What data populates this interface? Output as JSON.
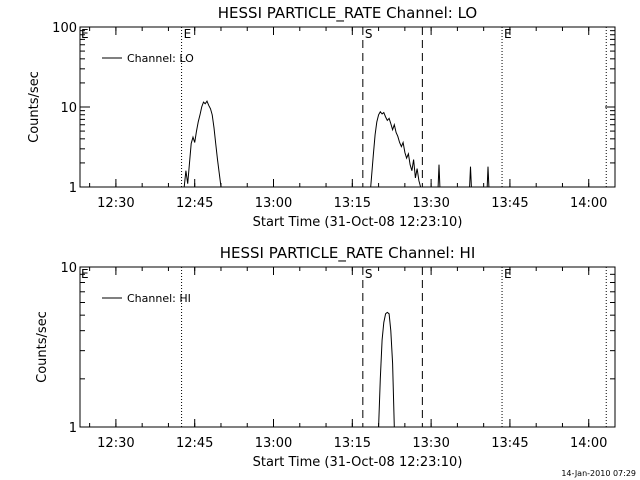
{
  "footer": {
    "timestamp": "14-Jan-2010 07:29"
  },
  "chart_data": [
    {
      "type": "line",
      "title": "HESSI PARTICLE_RATE Channel: LO",
      "xlabel": "Start Time (31-Oct-08 12:23:10)",
      "ylabel": "Counts/sec",
      "xlim": [
        "12:23:10",
        "14:05:00"
      ],
      "xticks": [
        "12:30",
        "12:45",
        "13:00",
        "13:15",
        "13:30",
        "13:45",
        "14:00"
      ],
      "yscale": "log",
      "ylim": [
        1,
        100
      ],
      "yticks": [
        "1",
        "10",
        "100"
      ],
      "legend": {
        "label": "Channel: LO",
        "position": "top-left"
      },
      "markers": [
        {
          "time": "12:42:30",
          "style": "dotted",
          "label": "E"
        },
        {
          "time": "13:17:00",
          "style": "dashed",
          "label": "S"
        },
        {
          "time": "13:28:20",
          "style": "dashed",
          "label": ""
        },
        {
          "time": "13:43:30",
          "style": "dotted",
          "label": "E"
        },
        {
          "time": "14:03:20",
          "style": "dotted",
          "label": ""
        }
      ],
      "marker_labels_extra": [
        {
          "time": "12:23:10",
          "label": "E"
        }
      ],
      "series": [
        {
          "name": "Channel: LO",
          "segments": [
            [
              [
                "12:43:00",
                1
              ],
              [
                "12:43:20",
                1.6
              ],
              [
                "12:43:40",
                1.1
              ],
              [
                "12:44:00",
                2
              ],
              [
                "12:44:20",
                3.5
              ],
              [
                "12:44:40",
                4.2
              ],
              [
                "12:45:00",
                3.6
              ],
              [
                "12:45:20",
                5
              ],
              [
                "12:45:40",
                6.5
              ],
              [
                "12:46:00",
                8
              ],
              [
                "12:46:20",
                10
              ],
              [
                "12:46:40",
                11.5
              ],
              [
                "12:47:00",
                11
              ],
              [
                "12:47:20",
                11.8
              ],
              [
                "12:47:40",
                10.5
              ],
              [
                "12:48:00",
                9.5
              ],
              [
                "12:48:20",
                8
              ],
              [
                "12:48:40",
                5.5
              ],
              [
                "12:49:00",
                3.5
              ],
              [
                "12:49:20",
                2.2
              ],
              [
                "12:49:40",
                1.5
              ],
              [
                "12:50:00",
                1
              ]
            ],
            [
              [
                "13:18:30",
                1
              ],
              [
                "13:19:00",
                2.5
              ],
              [
                "13:19:20",
                4.5
              ],
              [
                "13:19:40",
                6.5
              ],
              [
                "13:20:00",
                8
              ],
              [
                "13:20:20",
                8.7
              ],
              [
                "13:20:40",
                8.2
              ],
              [
                "13:21:00",
                8.5
              ],
              [
                "13:21:20",
                7.5
              ],
              [
                "13:21:40",
                6.8
              ],
              [
                "13:22:00",
                7.2
              ],
              [
                "13:22:20",
                6.2
              ],
              [
                "13:22:40",
                5.2
              ],
              [
                "13:23:00",
                6
              ],
              [
                "13:23:20",
                4.8
              ],
              [
                "13:23:40",
                4.3
              ],
              [
                "13:24:00",
                3.6
              ],
              [
                "13:24:20",
                3.2
              ],
              [
                "13:24:40",
                3.6
              ],
              [
                "13:25:00",
                2.7
              ],
              [
                "13:25:20",
                2.3
              ],
              [
                "13:25:40",
                2.6
              ],
              [
                "13:26:00",
                1.9
              ],
              [
                "13:26:20",
                1.6
              ],
              [
                "13:26:40",
                2.2
              ],
              [
                "13:27:00",
                1.3
              ],
              [
                "13:27:20",
                1.7
              ],
              [
                "13:27:40",
                1.2
              ],
              [
                "13:28:00",
                1
              ]
            ],
            [
              [
                "13:31:20",
                1
              ],
              [
                "13:31:30",
                1.9
              ],
              [
                "13:31:40",
                1
              ]
            ],
            [
              [
                "13:37:20",
                1
              ],
              [
                "13:37:30",
                1.8
              ],
              [
                "13:37:40",
                1
              ]
            ],
            [
              [
                "13:40:40",
                1
              ],
              [
                "13:40:50",
                1.8
              ],
              [
                "13:41:00",
                1
              ]
            ]
          ]
        }
      ]
    },
    {
      "type": "line",
      "title": "HESSI PARTICLE_RATE Channel: HI",
      "xlabel": "Start Time (31-Oct-08 12:23:10)",
      "ylabel": "Counts/sec",
      "xlim": [
        "12:23:10",
        "14:05:00"
      ],
      "xticks": [
        "12:30",
        "12:45",
        "13:00",
        "13:15",
        "13:30",
        "13:45",
        "14:00"
      ],
      "yscale": "log",
      "ylim": [
        1,
        10
      ],
      "yticks": [
        "1",
        "10"
      ],
      "legend": {
        "label": "Channel: HI",
        "position": "top-left"
      },
      "markers": [
        {
          "time": "12:42:30",
          "style": "dotted",
          "label": ""
        },
        {
          "time": "13:17:00",
          "style": "dashed",
          "label": "S"
        },
        {
          "time": "13:28:20",
          "style": "dashed",
          "label": ""
        },
        {
          "time": "13:43:30",
          "style": "dotted",
          "label": "E"
        },
        {
          "time": "14:03:20",
          "style": "dotted",
          "label": ""
        }
      ],
      "marker_labels_extra": [
        {
          "time": "12:23:10",
          "label": "E"
        }
      ],
      "series": [
        {
          "name": "Channel: HI",
          "segments": [
            [
              [
                "13:20:00",
                1
              ],
              [
                "13:20:20",
                2
              ],
              [
                "13:20:40",
                3.5
              ],
              [
                "13:21:00",
                4.5
              ],
              [
                "13:21:20",
                5.1
              ],
              [
                "13:21:40",
                5.2
              ],
              [
                "13:22:00",
                5.1
              ],
              [
                "13:22:20",
                4
              ],
              [
                "13:22:40",
                2.5
              ],
              [
                "13:23:00",
                1
              ]
            ]
          ]
        }
      ]
    }
  ]
}
